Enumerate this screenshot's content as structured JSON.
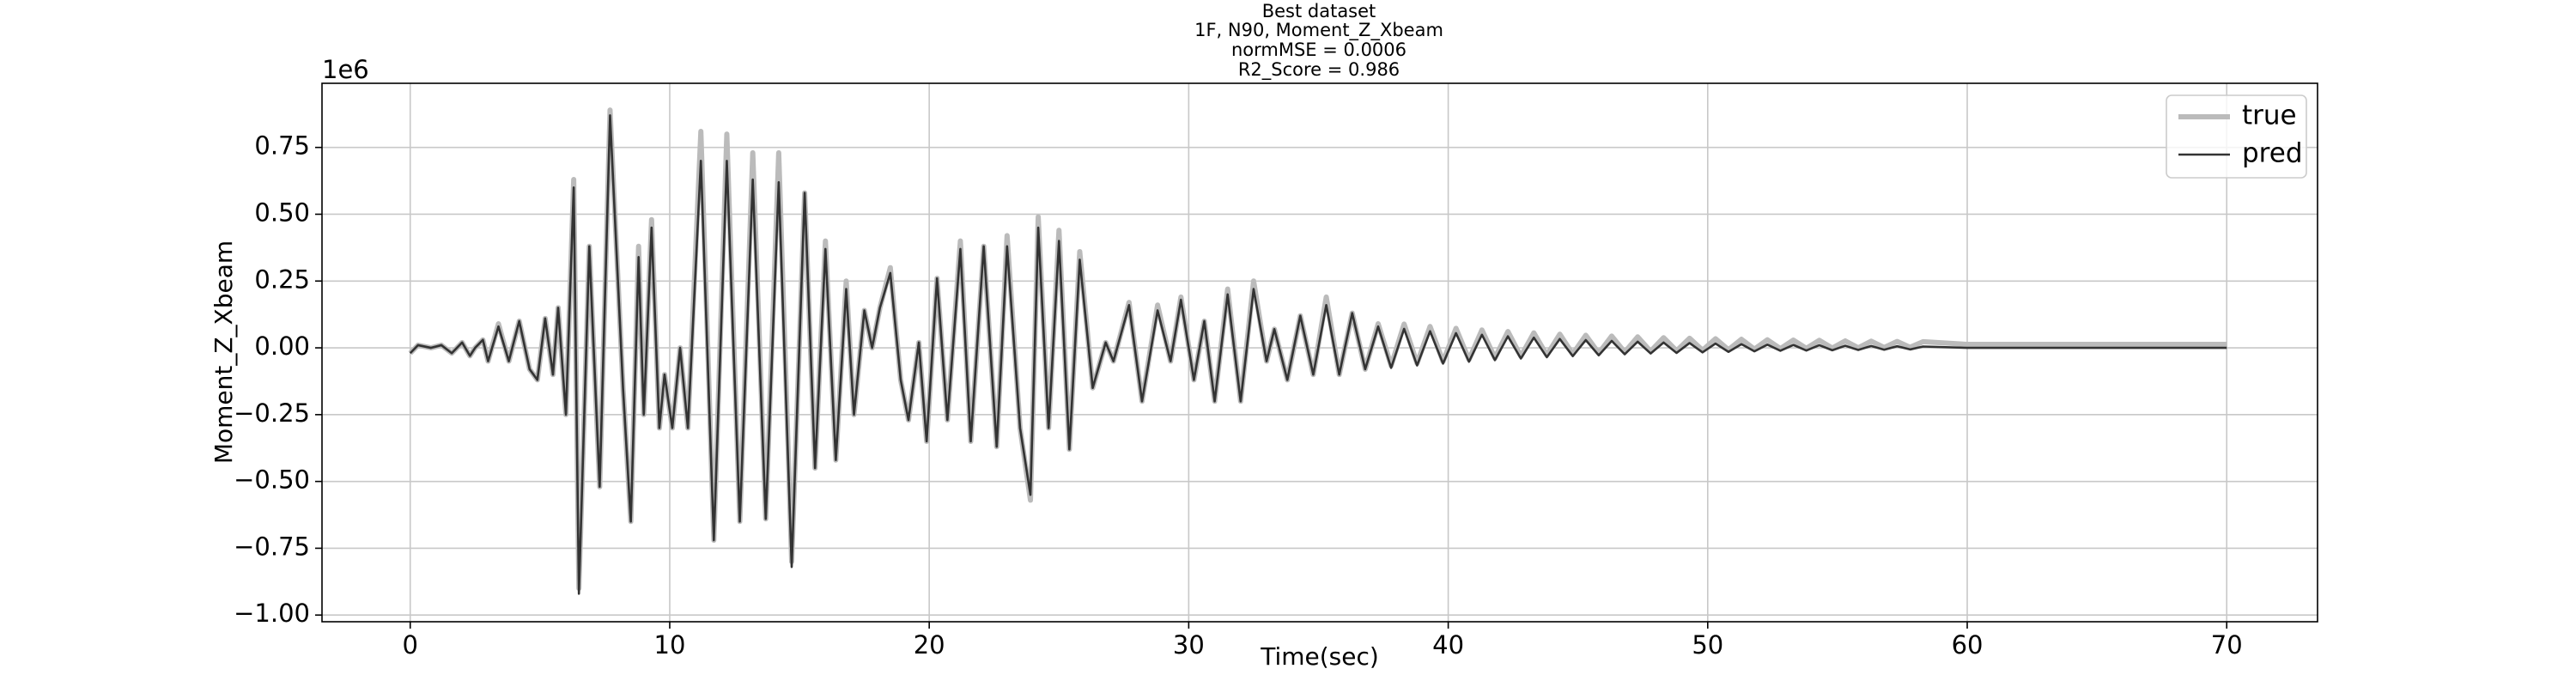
{
  "chart_data": {
    "type": "line",
    "title": "Best dataset",
    "subtitle": [
      "1F, N90, Moment_Z_Xbeam",
      "normMSE = 0.0006",
      "R2_Score = 0.986"
    ],
    "xlabel": "Time(sec)",
    "ylabel": "Moment_Z_Xbeam",
    "y_offset_label": "1e6",
    "grid": true,
    "legend": "upper right",
    "xlim": [
      -3.4,
      73.5
    ],
    "ylim": [
      -1.025,
      0.99
    ],
    "xticks": [
      0,
      10,
      20,
      30,
      40,
      50,
      60,
      70
    ],
    "yticks": [
      {
        "value": -1.0,
        "label": "−1.00"
      },
      {
        "value": -0.75,
        "label": "−0.75"
      },
      {
        "value": -0.5,
        "label": "−0.50"
      },
      {
        "value": -0.25,
        "label": "−0.25"
      },
      {
        "value": 0,
        "label": "0.00"
      },
      0.25,
      {
        "value": 0.5,
        "label": "0.50"
      },
      0.75
    ],
    "x": [
      0,
      0.3,
      0.8,
      1.2,
      1.6,
      2.0,
      2.3,
      2.5,
      2.8,
      3.0,
      3.4,
      3.8,
      4.2,
      4.6,
      4.9,
      5.2,
      5.5,
      5.7,
      6.0,
      6.3,
      6.5,
      6.9,
      7.3,
      7.7,
      8.2,
      8.5,
      8.8,
      9.0,
      9.3,
      9.6,
      9.8,
      10.1,
      10.4,
      10.7,
      11.2,
      11.7,
      12.2,
      12.7,
      13.2,
      13.7,
      14.2,
      14.7,
      15.2,
      15.6,
      16.0,
      16.4,
      16.8,
      17.1,
      17.5,
      17.8,
      18.1,
      18.5,
      18.9,
      19.2,
      19.6,
      19.9,
      20.3,
      20.7,
      21.2,
      21.6,
      22.1,
      22.6,
      23.0,
      23.5,
      23.9,
      24.2,
      24.6,
      25.0,
      25.4,
      25.8,
      26.3,
      26.8,
      27.1,
      27.7,
      28.2,
      28.8,
      29.3,
      29.7,
      30.2,
      30.6,
      31.0,
      31.5,
      32.0,
      32.5,
      33.0,
      33.3,
      33.8,
      34.3,
      34.8,
      35.3,
      35.8,
      36.3,
      36.8,
      37.3,
      37.8,
      38.3,
      38.8,
      39.3,
      39.8,
      40.3,
      40.8,
      41.3,
      41.8,
      42.3,
      42.8,
      43.3,
      43.8,
      44.3,
      44.8,
      45.3,
      45.8,
      46.3,
      46.8,
      47.3,
      47.8,
      48.3,
      48.8,
      49.3,
      49.8,
      50.3,
      50.8,
      51.3,
      51.8,
      52.3,
      52.8,
      53.3,
      53.8,
      54.3,
      54.8,
      55.3,
      55.8,
      56.3,
      56.8,
      57.3,
      57.8,
      58.3,
      60,
      62,
      64,
      66,
      68,
      70
    ],
    "series": [
      {
        "name": "true",
        "color": "#bbbbbb",
        "values": [
          -0.02,
          0.01,
          0.0,
          0.01,
          -0.02,
          0.02,
          -0.03,
          0.0,
          0.03,
          -0.05,
          0.09,
          -0.05,
          0.1,
          -0.08,
          -0.12,
          0.11,
          -0.1,
          0.15,
          -0.25,
          0.63,
          -0.9,
          0.38,
          -0.52,
          0.89,
          -0.15,
          -0.65,
          0.38,
          -0.25,
          0.48,
          -0.3,
          -0.1,
          -0.3,
          0.0,
          -0.3,
          0.81,
          -0.72,
          0.8,
          -0.65,
          0.73,
          -0.64,
          0.73,
          -0.8,
          0.58,
          -0.45,
          0.4,
          -0.42,
          0.25,
          -0.25,
          0.14,
          0.0,
          0.15,
          0.3,
          -0.12,
          -0.27,
          0.02,
          -0.35,
          0.26,
          -0.27,
          0.4,
          -0.35,
          0.38,
          -0.37,
          0.42,
          -0.3,
          -0.57,
          0.49,
          -0.3,
          0.44,
          -0.38,
          0.36,
          -0.15,
          0.02,
          -0.05,
          0.17,
          -0.2,
          0.16,
          -0.05,
          0.19,
          -0.12,
          0.1,
          -0.2,
          0.22,
          -0.2,
          0.25,
          -0.05,
          0.07,
          -0.12,
          0.12,
          -0.1,
          0.19,
          -0.1,
          0.13,
          -0.08,
          0.09,
          -0.067,
          0.089,
          -0.058,
          0.08,
          -0.051,
          0.073,
          -0.044,
          0.067,
          -0.038,
          0.061,
          -0.032,
          0.056,
          -0.027,
          0.051,
          -0.023,
          0.047,
          -0.02,
          0.044,
          -0.016,
          0.041,
          -0.013,
          0.038,
          -0.011,
          0.036,
          -0.009,
          0.034,
          -0.007,
          0.032,
          -0.005,
          0.03,
          -0.003,
          0.029,
          -0.002,
          0.028,
          -0.001,
          0.026,
          0.0,
          0.025,
          0.001,
          0.024,
          0.002,
          0.023,
          0.013,
          0.013,
          0.013,
          0.013,
          0.013,
          0.013
        ]
      },
      {
        "name": "pred",
        "color": "#333333",
        "values": [
          -0.02,
          0.01,
          0.0,
          0.01,
          -0.02,
          0.02,
          -0.03,
          0.0,
          0.03,
          -0.05,
          0.08,
          -0.05,
          0.1,
          -0.08,
          -0.12,
          0.11,
          -0.1,
          0.15,
          -0.25,
          0.6,
          -0.92,
          0.38,
          -0.52,
          0.87,
          -0.15,
          -0.65,
          0.34,
          -0.25,
          0.45,
          -0.3,
          -0.1,
          -0.3,
          0.0,
          -0.3,
          0.7,
          -0.72,
          0.7,
          -0.65,
          0.63,
          -0.64,
          0.62,
          -0.82,
          0.58,
          -0.45,
          0.37,
          -0.42,
          0.22,
          -0.25,
          0.14,
          0.0,
          0.15,
          0.28,
          -0.12,
          -0.27,
          0.02,
          -0.35,
          0.26,
          -0.27,
          0.37,
          -0.35,
          0.38,
          -0.37,
          0.38,
          -0.3,
          -0.55,
          0.45,
          -0.3,
          0.4,
          -0.38,
          0.33,
          -0.15,
          0.02,
          -0.05,
          0.16,
          -0.2,
          0.14,
          -0.05,
          0.18,
          -0.12,
          0.1,
          -0.2,
          0.2,
          -0.2,
          0.22,
          -0.05,
          0.07,
          -0.12,
          0.12,
          -0.1,
          0.16,
          -0.1,
          0.13,
          -0.08,
          0.08,
          -0.075,
          0.071,
          -0.066,
          0.062,
          -0.059,
          0.055,
          -0.052,
          0.049,
          -0.046,
          0.043,
          -0.04,
          0.038,
          -0.035,
          0.033,
          -0.031,
          0.029,
          -0.028,
          0.026,
          -0.024,
          0.023,
          -0.021,
          0.02,
          -0.019,
          0.018,
          -0.017,
          0.016,
          -0.015,
          0.014,
          -0.013,
          0.012,
          -0.011,
          0.011,
          -0.01,
          0.01,
          -0.009,
          0.008,
          -0.008,
          0.007,
          -0.007,
          0.006,
          -0.006,
          0.005,
          0.0,
          0.0,
          0.0,
          0.0,
          0.0,
          0.0
        ]
      }
    ]
  }
}
